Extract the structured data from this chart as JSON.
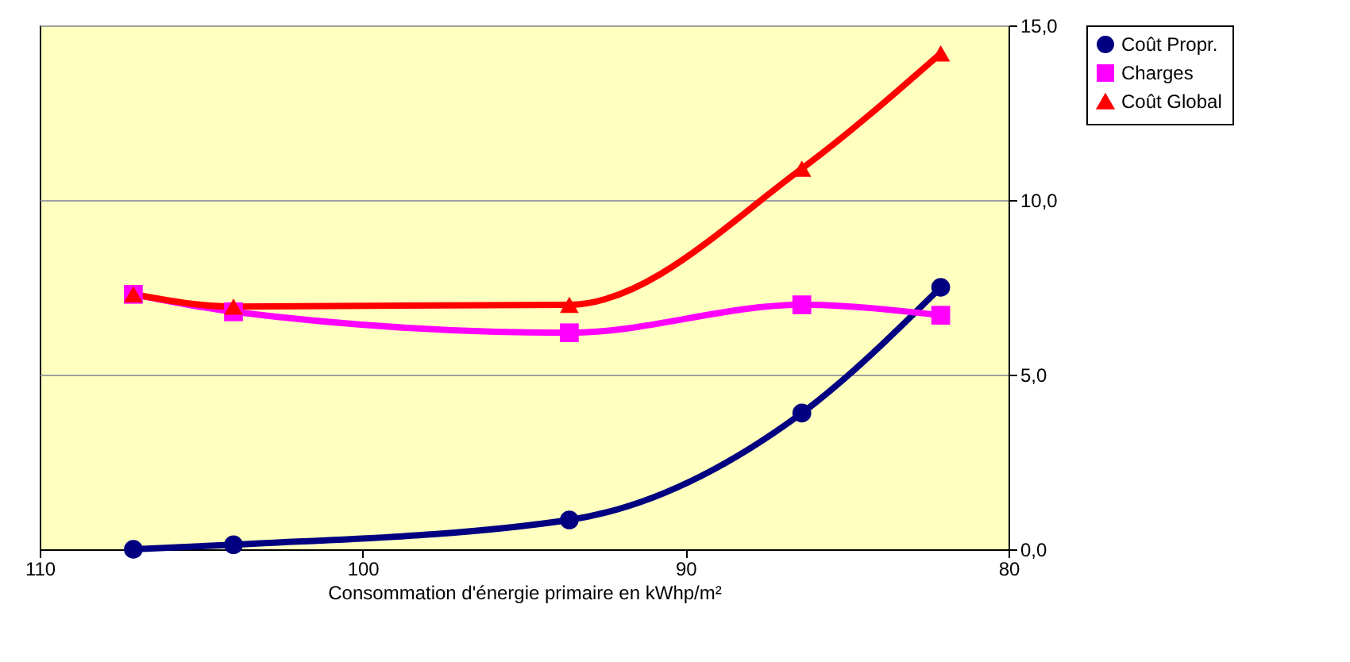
{
  "chart_data": {
    "type": "line",
    "xlabel": "Consommation d'énergie primaire en kWhp/m²",
    "x": [
      107.1,
      104.0,
      93.6,
      86.4,
      82.1
    ],
    "series": [
      {
        "name": "Coût Propr.",
        "color": "#000080",
        "marker": "circle",
        "values": [
          0.0,
          0.13,
          0.84,
          3.9,
          7.5
        ]
      },
      {
        "name": "Charges",
        "color": "#ff00ff",
        "marker": "square",
        "values": [
          7.3,
          6.8,
          6.2,
          7.0,
          6.7
        ]
      },
      {
        "name": "Coût Global",
        "color": "#ff0000",
        "marker": "triangle",
        "values": [
          7.3,
          6.95,
          7.0,
          10.9,
          14.2
        ]
      }
    ],
    "xlim": [
      110,
      80
    ],
    "xticks": [
      110,
      100,
      90,
      80
    ],
    "ylim": [
      0,
      15
    ],
    "yticks": [
      {
        "value": 0,
        "label": "0,0"
      },
      {
        "value": 5,
        "label": "5,0"
      },
      {
        "value": 10,
        "label": "10,0"
      },
      {
        "value": 15,
        "label": "15,0"
      }
    ],
    "grid": "y",
    "legend": "right",
    "line_style": "solid"
  }
}
